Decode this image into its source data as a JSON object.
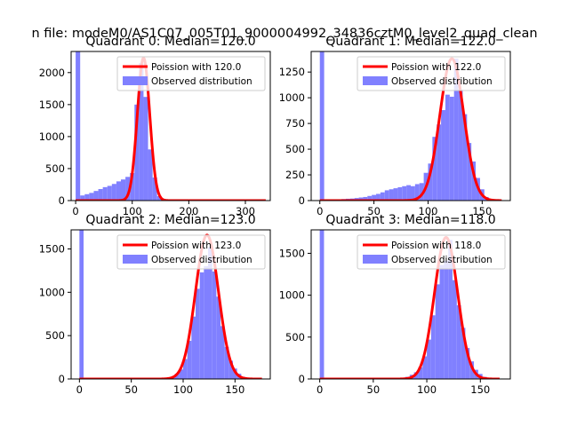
{
  "figure": {
    "suptitle": "n file: modeM0/AS1C07_005T01_9000004992_34836cztM0_level2_quad_clean"
  },
  "colors": {
    "hist_fill": "#8080ff",
    "fit_line": "#ff0000",
    "axes": "#000000",
    "legend_border": "#cccccc"
  },
  "chart_data": [
    {
      "type": "bar",
      "title": "Quadrant 0: Median=120.0",
      "xlim": [
        -8,
        344
      ],
      "ylim": [
        0,
        2330
      ],
      "xticks": [
        0,
        100,
        200,
        300
      ],
      "yticks": [
        0,
        500,
        1000,
        1500,
        2000
      ],
      "legend": [
        "Poission with 120.0",
        "Observed distribution"
      ],
      "legend_position": "top-right",
      "hist_bin_width": 8,
      "hist_bins": [
        [
          0,
          2330
        ],
        [
          8,
          80
        ],
        [
          16,
          100
        ],
        [
          24,
          120
        ],
        [
          32,
          150
        ],
        [
          40,
          180
        ],
        [
          48,
          210
        ],
        [
          56,
          230
        ],
        [
          64,
          260
        ],
        [
          72,
          300
        ],
        [
          80,
          330
        ],
        [
          88,
          370
        ],
        [
          96,
          430
        ],
        [
          104,
          1500
        ],
        [
          112,
          2150
        ],
        [
          120,
          1620
        ],
        [
          128,
          800
        ],
        [
          136,
          360
        ],
        [
          144,
          70
        ],
        [
          152,
          8
        ],
        [
          160,
          2
        ]
      ],
      "fit": {
        "lambda": 120.0,
        "peak": 2230,
        "x_range": [
          0,
          336
        ]
      }
    },
    {
      "type": "bar",
      "title": "Quadrant 1: Median=122.0",
      "xlim": [
        -8,
        176
      ],
      "ylim": [
        0,
        1450
      ],
      "xticks": [
        0,
        50,
        100,
        150
      ],
      "yticks": [
        0,
        250,
        500,
        750,
        1000,
        1250
      ],
      "legend": [
        "Poission with 122.0",
        "Observed distribution"
      ],
      "legend_position": "top-right",
      "hist_bin_width": 4,
      "hist_bins": [
        [
          0,
          1450
        ],
        [
          4,
          5
        ],
        [
          8,
          8
        ],
        [
          12,
          10
        ],
        [
          16,
          12
        ],
        [
          20,
          15
        ],
        [
          24,
          18
        ],
        [
          28,
          20
        ],
        [
          32,
          25
        ],
        [
          36,
          30
        ],
        [
          40,
          35
        ],
        [
          44,
          45
        ],
        [
          48,
          55
        ],
        [
          52,
          65
        ],
        [
          56,
          80
        ],
        [
          60,
          100
        ],
        [
          64,
          110
        ],
        [
          68,
          120
        ],
        [
          72,
          130
        ],
        [
          76,
          140
        ],
        [
          80,
          150
        ],
        [
          84,
          140
        ],
        [
          88,
          160
        ],
        [
          92,
          170
        ],
        [
          96,
          270
        ],
        [
          100,
          360
        ],
        [
          104,
          620
        ],
        [
          108,
          740
        ],
        [
          112,
          880
        ],
        [
          116,
          1030
        ],
        [
          120,
          1010
        ],
        [
          124,
          1380
        ],
        [
          128,
          1080
        ],
        [
          132,
          840
        ],
        [
          136,
          560
        ],
        [
          140,
          380
        ],
        [
          144,
          220
        ],
        [
          148,
          110
        ],
        [
          152,
          35
        ],
        [
          156,
          8
        ]
      ],
      "fit": {
        "lambda": 122.0,
        "peak": 1380,
        "x_range": [
          0,
          168
        ]
      }
    },
    {
      "type": "bar",
      "title": "Quadrant 2: Median=123.0",
      "xlim": [
        -8,
        184
      ],
      "ylim": [
        0,
        1720
      ],
      "xticks": [
        0,
        50,
        100,
        150
      ],
      "yticks": [
        0,
        500,
        1000,
        1500
      ],
      "legend": [
        "Poission with 123.0",
        "Observed distribution"
      ],
      "legend_position": "top-right",
      "hist_bin_width": 4,
      "hist_bins": [
        [
          0,
          1720
        ],
        [
          80,
          8
        ],
        [
          84,
          15
        ],
        [
          88,
          25
        ],
        [
          92,
          60
        ],
        [
          96,
          110
        ],
        [
          100,
          230
        ],
        [
          104,
          440
        ],
        [
          108,
          720
        ],
        [
          112,
          1040
        ],
        [
          116,
          1230
        ],
        [
          120,
          1300
        ],
        [
          124,
          1520
        ],
        [
          128,
          1240
        ],
        [
          132,
          950
        ],
        [
          136,
          610
        ],
        [
          140,
          370
        ],
        [
          144,
          210
        ],
        [
          148,
          120
        ],
        [
          152,
          60
        ],
        [
          156,
          25
        ],
        [
          160,
          8
        ]
      ],
      "fit": {
        "lambda": 123.0,
        "peak": 1660,
        "x_range": [
          0,
          176
        ]
      }
    },
    {
      "type": "bar",
      "title": "Quadrant 3: Median=118.0",
      "xlim": [
        -8,
        178
      ],
      "ylim": [
        0,
        1780
      ],
      "xticks": [
        0,
        50,
        100,
        150
      ],
      "yticks": [
        0,
        500,
        1000,
        1500
      ],
      "legend": [
        "Poission with 118.0",
        "Observed distribution"
      ],
      "legend_position": "top-right",
      "hist_bin_width": 4,
      "hist_bins": [
        [
          0,
          1780
        ],
        [
          72,
          8
        ],
        [
          76,
          15
        ],
        [
          80,
          25
        ],
        [
          84,
          50
        ],
        [
          88,
          80
        ],
        [
          92,
          140
        ],
        [
          96,
          270
        ],
        [
          100,
          470
        ],
        [
          104,
          760
        ],
        [
          108,
          1130
        ],
        [
          112,
          1360
        ],
        [
          116,
          1410
        ],
        [
          120,
          1660
        ],
        [
          124,
          1180
        ],
        [
          128,
          880
        ],
        [
          132,
          610
        ],
        [
          136,
          370
        ],
        [
          140,
          210
        ],
        [
          144,
          110
        ],
        [
          148,
          60
        ],
        [
          152,
          25
        ],
        [
          156,
          8
        ]
      ],
      "fit": {
        "lambda": 118.0,
        "peak": 1690,
        "x_range": [
          0,
          168
        ]
      }
    }
  ]
}
